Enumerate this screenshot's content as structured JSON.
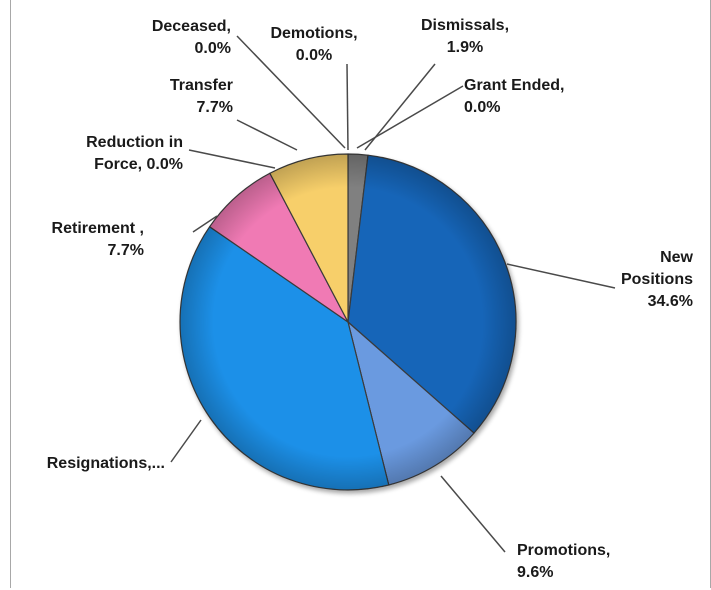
{
  "chart_data": {
    "type": "pie",
    "title": "",
    "slices": [
      {
        "label_lines": [
          "Dismissals,",
          "1.9%"
        ],
        "value": 1.9,
        "color": "#808080"
      },
      {
        "label_lines": [
          "New",
          "Positions",
          "34.6%"
        ],
        "value": 34.6,
        "color": "#1565b8"
      },
      {
        "label_lines": [
          "Promotions,",
          "9.6%"
        ],
        "value": 9.6,
        "color": "#6a9ae0"
      },
      {
        "label_lines": [
          "Resignations,..."
        ],
        "value": 38.5,
        "color": "#1e90e8"
      },
      {
        "label_lines": [
          "Retirement ,",
          "7.7%"
        ],
        "value": 7.7,
        "color": "#f07ab4"
      },
      {
        "label_lines": [
          "Transfer",
          "7.7%"
        ],
        "value": 7.7,
        "color": "#f7cf6a"
      },
      {
        "label_lines": [
          "Reduction in",
          "Force, 0.0%"
        ],
        "value": 0.0,
        "color": "#cccccc"
      },
      {
        "label_lines": [
          "Deceased,",
          "0.0%"
        ],
        "value": 0.0,
        "color": "#cccccc"
      },
      {
        "label_lines": [
          "Demotions,",
          "0.0%"
        ],
        "value": 0.0,
        "color": "#cccccc"
      },
      {
        "label_lines": [
          "Grant Ended,",
          "0.0%"
        ],
        "value": 0.0,
        "color": "#cccccc"
      }
    ],
    "start_angle_deg": 0,
    "direction": "clockwise",
    "style": "3d-bevel",
    "legend": "none (labels with leader lines)"
  }
}
